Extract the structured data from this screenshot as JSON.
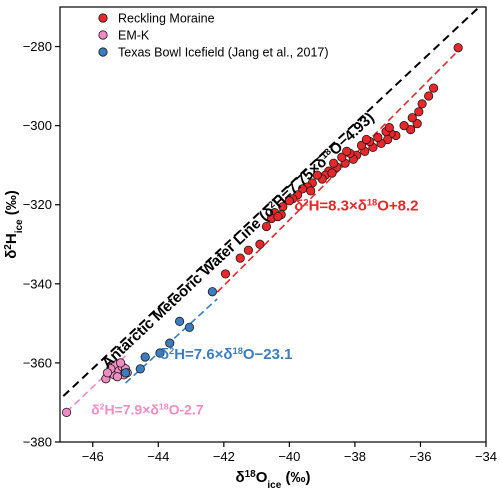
{
  "chart_data": {
    "type": "scatter",
    "xlabel": {
      "base": "δ",
      "sup": "18",
      "mid": "O",
      "sub": "ice",
      "unit": " (‰)"
    },
    "ylabel": {
      "base": "δ",
      "sup": "2",
      "mid": "H",
      "sub": "ice",
      "unit": " (‰)"
    },
    "xlim": [
      -47,
      -34
    ],
    "ylim": [
      -380,
      -270
    ],
    "xticks": [
      -46,
      -44,
      -42,
      -40,
      -38,
      -36,
      -34
    ],
    "yticks": [
      -380,
      -360,
      -340,
      -320,
      -300,
      -280
    ],
    "series": [
      {
        "name": "Reckling Moraine",
        "color": "#e8272a",
        "points": [
          [
            -34.85,
            -280.3
          ],
          [
            -35.6,
            -290.5
          ],
          [
            -35.75,
            -292.5
          ],
          [
            -35.95,
            -294.5
          ],
          [
            -36.05,
            -296.5
          ],
          [
            -36.1,
            -299.5
          ],
          [
            -36.25,
            -298.0
          ],
          [
            -36.3,
            -301.0
          ],
          [
            -36.5,
            -300.0
          ],
          [
            -36.75,
            -302.5
          ],
          [
            -36.9,
            -302.0
          ],
          [
            -37.0,
            -303.5
          ],
          [
            -37.05,
            -301.5
          ],
          [
            -37.2,
            -304.5
          ],
          [
            -37.3,
            -303.0
          ],
          [
            -37.45,
            -305.5
          ],
          [
            -37.55,
            -304.0
          ],
          [
            -37.7,
            -306.5
          ],
          [
            -37.8,
            -305.0
          ],
          [
            -37.95,
            -307.5
          ],
          [
            -38.05,
            -308.5
          ],
          [
            -38.15,
            -307.0
          ],
          [
            -38.3,
            -309.5
          ],
          [
            -38.4,
            -308.0
          ],
          [
            -38.55,
            -310.5
          ],
          [
            -38.65,
            -309.5
          ],
          [
            -38.8,
            -311.5
          ],
          [
            -38.9,
            -312.5
          ],
          [
            -39.0,
            -313.5
          ],
          [
            -39.15,
            -312.5
          ],
          [
            -39.3,
            -314.5
          ],
          [
            -39.45,
            -315.5
          ],
          [
            -39.6,
            -316.0
          ],
          [
            -39.75,
            -317.5
          ],
          [
            -39.9,
            -318.5
          ],
          [
            -40.0,
            -319.0
          ],
          [
            -40.2,
            -320.5
          ],
          [
            -40.25,
            -322.5
          ],
          [
            -40.45,
            -322.0
          ],
          [
            -40.55,
            -323.5
          ],
          [
            -40.7,
            -325.5
          ],
          [
            -40.35,
            -323.0
          ],
          [
            -39.35,
            -316.5
          ],
          [
            -38.7,
            -312.0
          ],
          [
            -38.25,
            -306.5
          ],
          [
            -37.65,
            -303.5
          ],
          [
            -36.95,
            -300.5
          ],
          [
            -40.9,
            -330.0
          ],
          [
            -41.25,
            -331.5
          ],
          [
            -41.5,
            -333.5
          ],
          [
            -41.95,
            -337.5
          ]
        ]
      },
      {
        "name": "EM-K",
        "color": "#f08cc3",
        "points": [
          [
            -46.8,
            -372.5
          ],
          [
            -45.6,
            -364.0
          ],
          [
            -45.5,
            -362.5
          ],
          [
            -45.4,
            -361.0
          ],
          [
            -45.35,
            -363.0
          ],
          [
            -45.3,
            -360.5
          ],
          [
            -45.2,
            -362.0
          ],
          [
            -45.1,
            -361.0
          ],
          [
            -45.05,
            -363.0
          ],
          [
            -45.0,
            -361.5
          ],
          [
            -45.45,
            -361.5
          ],
          [
            -45.25,
            -363.5
          ],
          [
            -45.55,
            -362.5
          ],
          [
            -45.15,
            -360.0
          ],
          [
            -44.95,
            -362.5
          ]
        ]
      },
      {
        "name": "Texas Bowl Icefield (Jang et al., 2017)",
        "color": "#3b7dbf",
        "points": [
          [
            -45.0,
            -362.5
          ],
          [
            -44.55,
            -361.5
          ],
          [
            -44.4,
            -358.5
          ],
          [
            -43.95,
            -357.5
          ],
          [
            -43.65,
            -355.0
          ],
          [
            -43.35,
            -349.5
          ],
          [
            -43.05,
            -351.0
          ],
          [
            -42.35,
            -342.0
          ]
        ]
      }
    ],
    "lines": [
      {
        "name": "amwl",
        "color": "#000000",
        "x": [
          -46.9,
          -34.0
        ],
        "y": [
          -368.4,
          -268.4
        ],
        "label_parts": [
          {
            "text": "Antarctic Meteoric Water Line (δ",
            "shift": "0"
          },
          {
            "text": "2",
            "shift": "sup"
          },
          {
            "text": "H=7.75×δ",
            "shift": "0"
          },
          {
            "text": "18",
            "shift": "sup"
          },
          {
            "text": "O−4.93)",
            "shift": "0"
          }
        ],
        "label_anchor": [
          -45.55,
          -361.5
        ]
      },
      {
        "name": "red-fit",
        "color": "#e8272a",
        "x": [
          -42.2,
          -34.9
        ],
        "y": [
          -342.1,
          -281.5
        ],
        "label_parts": [
          {
            "text": "δ",
            "shift": "0"
          },
          {
            "text": "2",
            "shift": "sup"
          },
          {
            "text": "H=8.3×δ",
            "shift": "0"
          },
          {
            "text": "18",
            "shift": "sup"
          },
          {
            "text": "O+8.2",
            "shift": "0"
          }
        ],
        "label_anchor": [
          -39.85,
          -321.5
        ]
      },
      {
        "name": "blue-fit",
        "color": "#3b7dbf",
        "x": [
          -45.0,
          -42.2
        ],
        "y": [
          -365.1,
          -343.8
        ],
        "label_parts": [
          {
            "text": "δ",
            "shift": "0"
          },
          {
            "text": "2",
            "shift": "sup"
          },
          {
            "text": "H=7.6×δ",
            "shift": "0"
          },
          {
            "text": "18",
            "shift": "sup"
          },
          {
            "text": "O−23.1",
            "shift": "0"
          }
        ],
        "label_anchor": [
          -43.95,
          -359.0
        ]
      },
      {
        "name": "pink-fit",
        "color": "#f08cc3",
        "x": [
          -46.8,
          -45.0
        ],
        "y": [
          -372.4,
          -358.2
        ],
        "label_parts": [
          {
            "text": "δ",
            "shift": "0"
          },
          {
            "text": "2",
            "shift": "sup"
          },
          {
            "text": "H=7.9×δ",
            "shift": "0"
          },
          {
            "text": "18",
            "shift": "sup"
          },
          {
            "text": "O-2.7",
            "shift": "0"
          }
        ],
        "label_anchor": [
          -46.05,
          -373.0
        ]
      }
    ],
    "legend": {
      "placement": "top-left",
      "entries": [
        "Reckling Moraine",
        "EM-K",
        "Texas Bowl Icefield (Jang et al., 2017)"
      ]
    }
  }
}
